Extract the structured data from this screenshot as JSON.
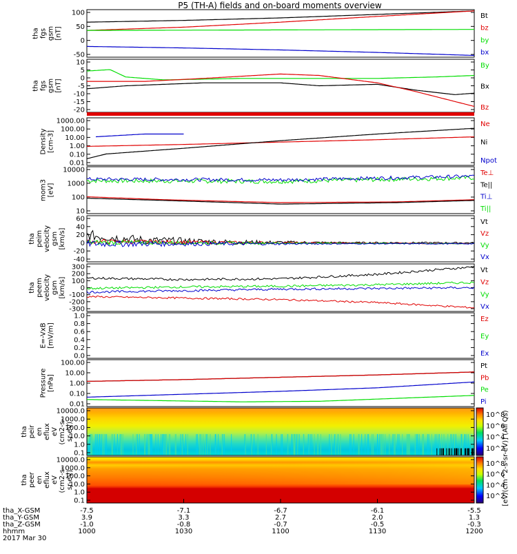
{
  "title": "P5 (TH-A) fields and on-board moments overview",
  "date_label": "2017 Mar 30",
  "colorbar_label": "[eV/(cm^2-s-sr-eV)] (All Qs)",
  "colorbar_ticks": [
    "10^8",
    "10^6",
    "10^4",
    "10^2"
  ],
  "colors": {
    "black": "#000000",
    "red": "#e00000",
    "green": "#00dd00",
    "blue": "#0000cc"
  },
  "xaxis": {
    "rows": [
      {
        "label": "tha_X-GSM",
        "values": [
          "-7.5",
          "-7.1",
          "-6.7",
          "-6.1",
          "-5.5"
        ]
      },
      {
        "label": "tha_Y-GSM",
        "values": [
          "3.9",
          "3.3",
          "2.7",
          "2.0",
          "1.3"
        ]
      },
      {
        "label": "tha_Z-GSM",
        "values": [
          "-1.0",
          "-0.8",
          "-0.7",
          "-0.5",
          "-0.3"
        ]
      },
      {
        "label": "hhmm",
        "values": [
          "1000",
          "1030",
          "1100",
          "1130",
          "1200"
        ]
      }
    ]
  },
  "chart_data": [
    {
      "type": "line",
      "name": "fgs",
      "ylabel": [
        "tha",
        "fgs",
        "gsm",
        "[nT]"
      ],
      "yticks": [
        "100",
        "50",
        "0",
        "-50"
      ],
      "ylim": [
        -85,
        105
      ],
      "legend": [
        "Bt",
        "bz",
        "by",
        "bx"
      ],
      "series": [
        {
          "name": "Bt",
          "color": "black",
          "points": [
            [
              0,
              55
            ],
            [
              0.25,
              62
            ],
            [
              0.5,
              72
            ],
            [
              0.75,
              86
            ],
            [
              1,
              100
            ]
          ]
        },
        {
          "name": "bz",
          "color": "red",
          "points": [
            [
              0,
              22
            ],
            [
              0.25,
              35
            ],
            [
              0.5,
              55
            ],
            [
              0.75,
              78
            ],
            [
              1,
              100
            ]
          ]
        },
        {
          "name": "by",
          "color": "green",
          "points": [
            [
              0,
              22
            ],
            [
              0.5,
              24
            ],
            [
              1,
              26
            ]
          ]
        },
        {
          "name": "bx",
          "color": "blue",
          "points": [
            [
              0,
              -42
            ],
            [
              0.25,
              -48
            ],
            [
              0.5,
              -56
            ],
            [
              0.75,
              -66
            ],
            [
              1,
              -78
            ]
          ]
        }
      ]
    },
    {
      "type": "line",
      "name": "fgs-gsm-small",
      "ylabel": [
        "tha",
        "fgs",
        "gsm",
        "[nT]"
      ],
      "yticks": [
        "10",
        "5",
        "0",
        "-5",
        "-10",
        "-15",
        "-20"
      ],
      "ylim": [
        -24,
        12
      ],
      "legend": [
        "By",
        "Bx",
        "Bz"
      ],
      "series": [
        {
          "name": "By",
          "color": "green",
          "points": [
            [
              0,
              4
            ],
            [
              0.06,
              5
            ],
            [
              0.1,
              0
            ],
            [
              0.2,
              -2
            ],
            [
              0.4,
              -1
            ],
            [
              0.6,
              -1
            ],
            [
              0.75,
              -1
            ],
            [
              0.9,
              0
            ],
            [
              1,
              1
            ]
          ]
        },
        {
          "name": "Bx",
          "color": "black",
          "points": [
            [
              0,
              -8
            ],
            [
              0.1,
              -6
            ],
            [
              0.3,
              -4
            ],
            [
              0.5,
              -4
            ],
            [
              0.6,
              -6
            ],
            [
              0.75,
              -5
            ],
            [
              0.85,
              -9
            ],
            [
              0.95,
              -12
            ],
            [
              1,
              -11
            ]
          ]
        },
        {
          "name": "Bz",
          "color": "red",
          "points": [
            [
              0,
              -3
            ],
            [
              0.15,
              -3
            ],
            [
              0.3,
              -1
            ],
            [
              0.5,
              2
            ],
            [
              0.6,
              1
            ],
            [
              0.75,
              -4
            ],
            [
              0.85,
              -10
            ],
            [
              1,
              -20
            ]
          ]
        }
      ]
    },
    {
      "type": "line",
      "name": "density",
      "ylabel": [
        "Density",
        "[cm-3]"
      ],
      "yticks": [
        "1000.00",
        "100.00",
        "10.00",
        "1.00",
        "0.10",
        "0.01"
      ],
      "ylim": [
        -2,
        3
      ],
      "log": true,
      "legend": [
        "Ne",
        "Ni",
        "Npot"
      ],
      "series": [
        {
          "name": "Ne",
          "color": "red",
          "points": [
            [
              0,
              0
            ],
            [
              0.25,
              0.2
            ],
            [
              0.5,
              0.45
            ],
            [
              0.75,
              0.7
            ],
            [
              1,
              1.0
            ]
          ]
        },
        {
          "name": "Ni",
          "color": "black",
          "points": [
            [
              0,
              -1.3
            ],
            [
              0.05,
              -0.8
            ],
            [
              0.25,
              -0.2
            ],
            [
              0.5,
              0.6
            ],
            [
              0.75,
              1.3
            ],
            [
              1,
              1.9
            ]
          ]
        },
        {
          "name": "Npot",
          "color": "blue",
          "points": [
            [
              0.02,
              1.0
            ],
            [
              0.15,
              1.3
            ],
            [
              0.25,
              1.3
            ]
          ]
        }
      ]
    },
    {
      "type": "line",
      "name": "temperature",
      "ylabel": [
        "mom3",
        "[eV]"
      ],
      "yticks": [
        "10000",
        "1000",
        "100",
        "10"
      ],
      "ylim": [
        0.8,
        4
      ],
      "log": true,
      "legend": [
        "Te⊥",
        "Te||",
        "Ti⊥",
        "Ti||"
      ],
      "series": [
        {
          "name": "Ti||",
          "color": "green",
          "points": [
            [
              0,
              3.05
            ],
            [
              0.5,
              3.0
            ],
            [
              1,
              3.25
            ]
          ],
          "noise": 0.15
        },
        {
          "name": "Ti⊥",
          "color": "blue",
          "points": [
            [
              0,
              3.15
            ],
            [
              0.5,
              3.1
            ],
            [
              1,
              3.35
            ]
          ],
          "noise": 0.12
        },
        {
          "name": "Te⊥",
          "color": "red",
          "points": [
            [
              0,
              1.95
            ],
            [
              0.2,
              1.75
            ],
            [
              0.5,
              1.55
            ],
            [
              0.8,
              1.6
            ],
            [
              1,
              1.75
            ]
          ]
        },
        {
          "name": "Te||",
          "color": "black",
          "points": [
            [
              0,
              1.85
            ],
            [
              0.2,
              1.7
            ],
            [
              0.5,
              1.45
            ],
            [
              0.8,
              1.55
            ],
            [
              1,
              1.7
            ]
          ]
        }
      ]
    },
    {
      "type": "line",
      "name": "ion-velocity",
      "ylabel": [
        "tha",
        "peim",
        "velocity",
        "gsm",
        "[km/s]"
      ],
      "yticks": [
        "60",
        "40",
        "20",
        "0",
        "-20",
        "-40"
      ],
      "ylim": [
        -42,
        65
      ],
      "legend": [
        "Vt",
        "Vz",
        "Vy",
        "Vx"
      ],
      "series": [
        {
          "name": "Vt",
          "color": "black",
          "points": [
            [
              0,
              20
            ],
            [
              0.15,
              8
            ],
            [
              0.4,
              3
            ],
            [
              1,
              2
            ]
          ],
          "noise": 12
        },
        {
          "name": "Vz",
          "color": "red",
          "points": [
            [
              0,
              5
            ],
            [
              1,
              0
            ]
          ],
          "noise": 6
        },
        {
          "name": "Vy",
          "color": "green",
          "points": [
            [
              0,
              3
            ],
            [
              1,
              0
            ]
          ],
          "noise": 6
        },
        {
          "name": "Vx",
          "color": "blue",
          "points": [
            [
              0,
              0
            ],
            [
              1,
              0
            ]
          ],
          "noise": 8
        }
      ]
    },
    {
      "type": "line",
      "name": "electron-velocity",
      "ylabel": [
        "tha",
        "peem",
        "velocity",
        "gsm",
        "[km/s]"
      ],
      "yticks": [
        "300",
        "200",
        "100",
        "0",
        "-100",
        "-200",
        "-300"
      ],
      "ylim": [
        -320,
        320
      ],
      "legend": [
        "Vt",
        "Vz",
        "Vy",
        "Vx"
      ],
      "series": [
        {
          "name": "Vt",
          "color": "black",
          "points": [
            [
              0,
              130
            ],
            [
              0.25,
              110
            ],
            [
              0.5,
              120
            ],
            [
              0.75,
              180
            ],
            [
              1,
              280
            ]
          ],
          "noise": 15
        },
        {
          "name": "Vz",
          "color": "red",
          "points": [
            [
              0,
              -120
            ],
            [
              0.25,
              -140
            ],
            [
              0.5,
              -160
            ],
            [
              0.75,
              -200
            ],
            [
              1,
              -270
            ]
          ],
          "noise": 12
        },
        {
          "name": "Vy",
          "color": "green",
          "points": [
            [
              0,
              -10
            ],
            [
              0.25,
              10
            ],
            [
              0.5,
              20
            ],
            [
              0.75,
              40
            ],
            [
              1,
              70
            ]
          ],
          "noise": 15
        },
        {
          "name": "Vx",
          "color": "blue",
          "points": [
            [
              0,
              -60
            ],
            [
              0.25,
              -40
            ],
            [
              0.5,
              -20
            ],
            [
              0.75,
              -10
            ],
            [
              1,
              0
            ]
          ],
          "noise": 15
        }
      ]
    },
    {
      "type": "line",
      "name": "efield",
      "ylabel": [
        "E=-VxB",
        "[mV/m]"
      ],
      "yticks": [
        "1.0",
        "0.8",
        "0.6",
        "0.4",
        "0.2",
        "0.0"
      ],
      "ylim": [
        0,
        1
      ],
      "legend": [
        "Ez",
        "Ey",
        "Ex"
      ],
      "series": []
    },
    {
      "type": "line",
      "name": "pressure",
      "ylabel": [
        "Pressure",
        "[nPa]"
      ],
      "yticks": [
        "100.00",
        "10.00",
        "1.00",
        "0.10",
        "0.01"
      ],
      "ylim": [
        -2,
        2
      ],
      "log": true,
      "legend": [
        "Pt",
        "Pb",
        "Pe",
        "Pi"
      ],
      "series": [
        {
          "name": "Pt",
          "color": "black",
          "points": [
            [
              0,
              0.15
            ],
            [
              0.25,
              0.3
            ],
            [
              0.5,
              0.5
            ],
            [
              0.75,
              0.7
            ],
            [
              1,
              0.95
            ]
          ]
        },
        {
          "name": "Pb",
          "color": "red",
          "points": [
            [
              0,
              0.15
            ],
            [
              0.25,
              0.3
            ],
            [
              0.5,
              0.5
            ],
            [
              0.75,
              0.7
            ],
            [
              1,
              0.95
            ]
          ]
        },
        {
          "name": "Pe",
          "color": "green",
          "points": [
            [
              0,
              -1.4
            ],
            [
              0.4,
              -1.6
            ],
            [
              0.6,
              -1.55
            ],
            [
              0.8,
              -1.3
            ],
            [
              1,
              -1.05
            ]
          ]
        },
        {
          "name": "Pi",
          "color": "blue",
          "points": [
            [
              0,
              -1.2
            ],
            [
              0.25,
              -0.95
            ],
            [
              0.5,
              -0.7
            ],
            [
              0.75,
              -0.4
            ],
            [
              1,
              0.1
            ]
          ]
        }
      ]
    },
    {
      "type": "heatmap",
      "name": "ion-spectrogram",
      "ylabel": [
        "tha",
        "peir",
        "en",
        "eflux",
        "eV",
        "(cm2-s-",
        "sr-eV)"
      ],
      "yticks": [
        "10000.0",
        "1000.0",
        "100.0",
        "10.0",
        "1.0",
        "0.1"
      ]
    },
    {
      "type": "heatmap",
      "name": "electron-spectrogram",
      "ylabel": [
        "tha",
        "peer",
        "en",
        "eflux",
        "eV",
        "(cm2-s-",
        "sr-eV)"
      ],
      "yticks": [
        "10000.0",
        "1000.0",
        "100.0",
        "10.0",
        "1.0",
        "0.1"
      ]
    }
  ]
}
